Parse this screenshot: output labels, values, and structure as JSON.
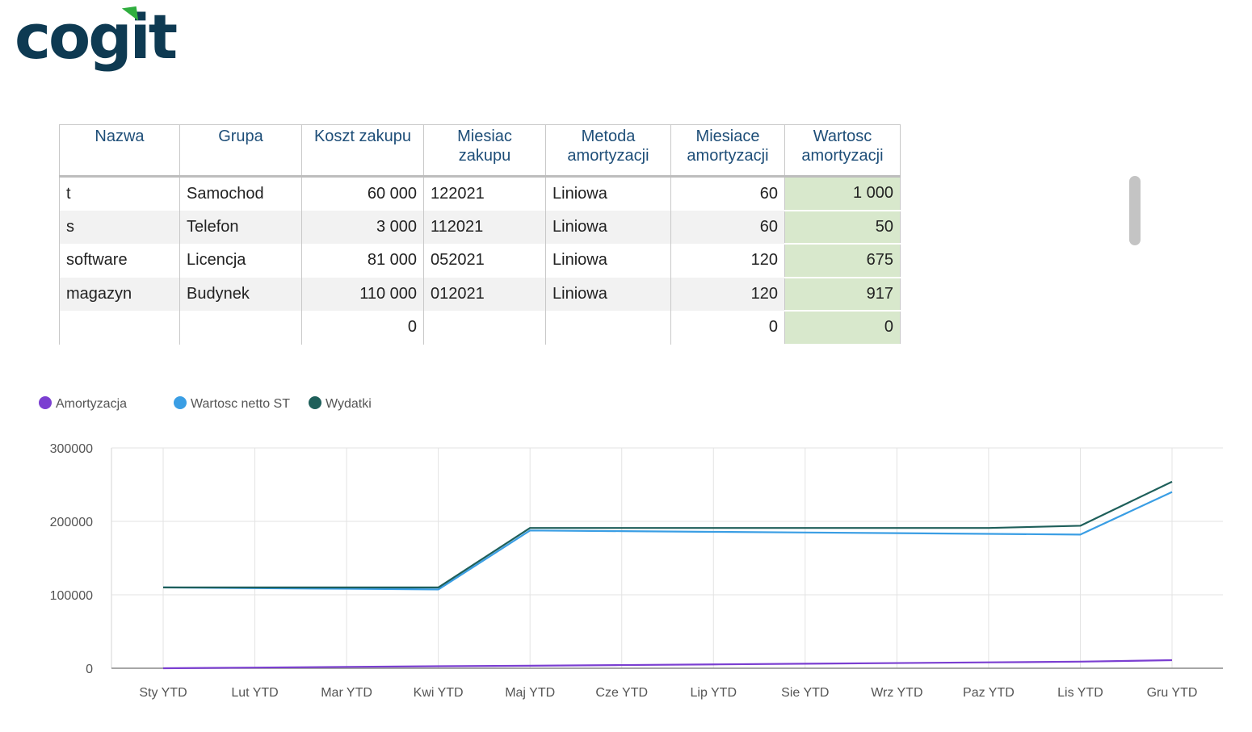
{
  "logo": {
    "text": "cogit",
    "mark_color": "#2fae3f",
    "text_color": "#0e3a52"
  },
  "table": {
    "headers": [
      {
        "line1": "Nazwa",
        "line2": ""
      },
      {
        "line1": "Grupa",
        "line2": ""
      },
      {
        "line1": "Koszt zakupu",
        "line2": ""
      },
      {
        "line1": "Miesiac",
        "line2": "zakupu"
      },
      {
        "line1": "Metoda",
        "line2": "amortyzacji"
      },
      {
        "line1": "Miesiace",
        "line2": "amortyzacji"
      },
      {
        "line1": "Wartosc",
        "line2": "amortyzacji"
      }
    ],
    "rows": [
      [
        "t",
        "Samochod",
        "60 000",
        "122021",
        "Liniowa",
        "60",
        "1 000"
      ],
      [
        "s",
        "Telefon",
        "3 000",
        "112021",
        "Liniowa",
        "60",
        "50"
      ],
      [
        "software",
        "Licencja",
        "81 000",
        "052021",
        "Liniowa",
        "120",
        "675"
      ],
      [
        "magazyn",
        "Budynek",
        "110 000",
        "012021",
        "Liniowa",
        "120",
        "917"
      ],
      [
        "",
        "",
        "0",
        "",
        "",
        "0",
        "0"
      ]
    ]
  },
  "chart_data": {
    "type": "line",
    "categories": [
      "Sty YTD",
      "Lut YTD",
      "Mar YTD",
      "Kwi YTD",
      "Maj YTD",
      "Cze YTD",
      "Lip YTD",
      "Sie YTD",
      "Wrz YTD",
      "Paz YTD",
      "Lis YTD",
      "Gru YTD"
    ],
    "series": [
      {
        "name": "Amortyzacja",
        "color": "#7b3fd1",
        "values": [
          0,
          917,
          1834,
          2751,
          3426,
          4343,
          5260,
          6177,
          7094,
          8011,
          8978,
          11000
        ]
      },
      {
        "name": "Wartosc netto ST",
        "color": "#3a9ee4",
        "values": [
          110000,
          109083,
          108166,
          107249,
          187574,
          186657,
          185740,
          184823,
          183906,
          182989,
          182022,
          240000
        ]
      },
      {
        "name": "Wydatki",
        "color": "#1e5f5a",
        "values": [
          110000,
          110000,
          110000,
          110000,
          191000,
          191000,
          191000,
          191000,
          191000,
          191000,
          194000,
          254000
        ]
      }
    ],
    "yticks": [
      "0",
      "100000",
      "200000",
      "300000"
    ],
    "ylim": [
      0,
      300000
    ],
    "grid": true,
    "legend_position": "top-left",
    "title": "",
    "xlabel": "",
    "ylabel": ""
  }
}
